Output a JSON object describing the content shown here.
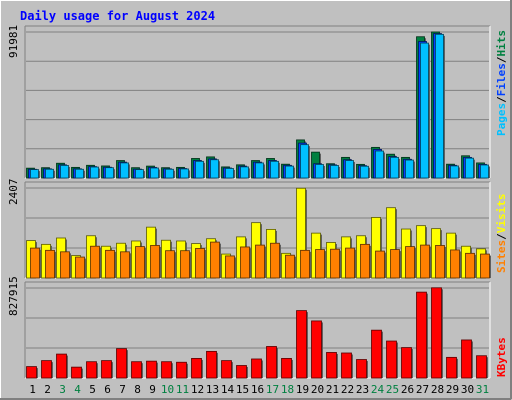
{
  "title": "Daily usage for August 2024",
  "colors": {
    "background": "#c0c0c0",
    "title_text": "#0000ff",
    "hits": "#008040",
    "files": "#0040ff",
    "pages": "#00c0ff",
    "visits": "#ffff00",
    "sites": "#ff8000",
    "kbytes": "#ff0000",
    "weekend_day": "#008040",
    "weekday": "#000000"
  },
  "chart_data": [
    {
      "type": "bar",
      "name": "hits-files-pages",
      "ymax_label": "91981",
      "ylim": [
        0,
        91981
      ],
      "legend": [
        "Pages",
        "/",
        "Files",
        "/",
        "Hits"
      ],
      "grid": true,
      "categories": [
        "1",
        "2",
        "3",
        "4",
        "5",
        "6",
        "7",
        "8",
        "9",
        "10",
        "11",
        "12",
        "13",
        "14",
        "15",
        "16",
        "17",
        "18",
        "19",
        "20",
        "21",
        "22",
        "23",
        "24",
        "25",
        "26",
        "27",
        "28",
        "29",
        "30",
        "31"
      ],
      "series": [
        {
          "name": "Hits",
          "values": [
            6200,
            6500,
            9300,
            6700,
            8000,
            7600,
            11000,
            6500,
            7500,
            6500,
            6700,
            12300,
            13300,
            7000,
            8300,
            11000,
            12300,
            8700,
            24000,
            16300,
            9000,
            13000,
            8600,
            19300,
            15000,
            13000,
            89000,
            92000,
            8700,
            14000,
            9500
          ]
        },
        {
          "name": "Files",
          "values": [
            5500,
            5800,
            8300,
            5800,
            7200,
            6800,
            10000,
            5600,
            6700,
            5800,
            6000,
            11000,
            12000,
            6300,
            7500,
            10000,
            11000,
            8000,
            22000,
            9000,
            8300,
            11500,
            7800,
            18000,
            13500,
            11800,
            86000,
            91000,
            8000,
            13000,
            8600
          ]
        },
        {
          "name": "Pages",
          "values": [
            5300,
            5500,
            7900,
            5500,
            6900,
            6500,
            9500,
            5300,
            6300,
            5500,
            5700,
            10500,
            11500,
            6000,
            7000,
            9500,
            10500,
            7500,
            21000,
            8500,
            7900,
            11000,
            7400,
            17000,
            13000,
            11300,
            85000,
            90500,
            7600,
            12500,
            8200
          ]
        }
      ]
    },
    {
      "type": "bar",
      "name": "visits-sites",
      "ymax_label": "2407",
      "ylim": [
        0,
        2407
      ],
      "legend": [
        "Sites",
        "/",
        "Visits"
      ],
      "grid": true,
      "categories": [
        "1",
        "2",
        "3",
        "4",
        "5",
        "6",
        "7",
        "8",
        "9",
        "10",
        "11",
        "12",
        "13",
        "14",
        "15",
        "16",
        "17",
        "18",
        "19",
        "20",
        "21",
        "22",
        "23",
        "24",
        "25",
        "26",
        "27",
        "28",
        "29",
        "30",
        "31"
      ],
      "series": [
        {
          "name": "Visits",
          "values": [
            1000,
            900,
            1070,
            600,
            1130,
            850,
            930,
            990,
            1360,
            1010,
            990,
            920,
            1050,
            640,
            1100,
            1480,
            1300,
            660,
            2400,
            1200,
            950,
            1100,
            1130,
            1620,
            1880,
            1310,
            1400,
            1320,
            1200,
            850,
            780
          ]
        },
        {
          "name": "Sites",
          "values": [
            800,
            740,
            700,
            560,
            850,
            740,
            700,
            840,
            870,
            730,
            730,
            790,
            960,
            590,
            830,
            880,
            930,
            610,
            740,
            760,
            770,
            800,
            900,
            720,
            760,
            840,
            880,
            870,
            750,
            660,
            640
          ]
        }
      ]
    },
    {
      "type": "bar",
      "name": "kbytes",
      "ymax_label": "827915",
      "ylim": [
        0,
        827915
      ],
      "legend": [
        "KBytes"
      ],
      "grid": true,
      "categories": [
        "1",
        "2",
        "3",
        "4",
        "5",
        "6",
        "7",
        "8",
        "9",
        "10",
        "11",
        "12",
        "13",
        "14",
        "15",
        "16",
        "17",
        "18",
        "19",
        "20",
        "21",
        "22",
        "23",
        "24",
        "25",
        "26",
        "27",
        "28",
        "29",
        "30",
        "31"
      ],
      "series": [
        {
          "name": "KBytes",
          "values": [
            105000,
            160000,
            220000,
            100000,
            150000,
            160000,
            270000,
            150000,
            155000,
            150000,
            145000,
            180000,
            245000,
            160000,
            115000,
            175000,
            290000,
            180000,
            620000,
            525000,
            235000,
            230000,
            170000,
            440000,
            340000,
            280000,
            790000,
            830000,
            190000,
            350000,
            205000
          ]
        }
      ]
    }
  ],
  "days": {
    "labels": [
      "1",
      "2",
      "3",
      "4",
      "5",
      "6",
      "7",
      "8",
      "9",
      "10",
      "11",
      "12",
      "13",
      "14",
      "15",
      "16",
      "17",
      "18",
      "19",
      "20",
      "21",
      "22",
      "23",
      "24",
      "25",
      "26",
      "27",
      "28",
      "29",
      "30",
      "31"
    ],
    "weekend": [
      "3",
      "4",
      "10",
      "11",
      "17",
      "18",
      "24",
      "25",
      "31"
    ]
  }
}
